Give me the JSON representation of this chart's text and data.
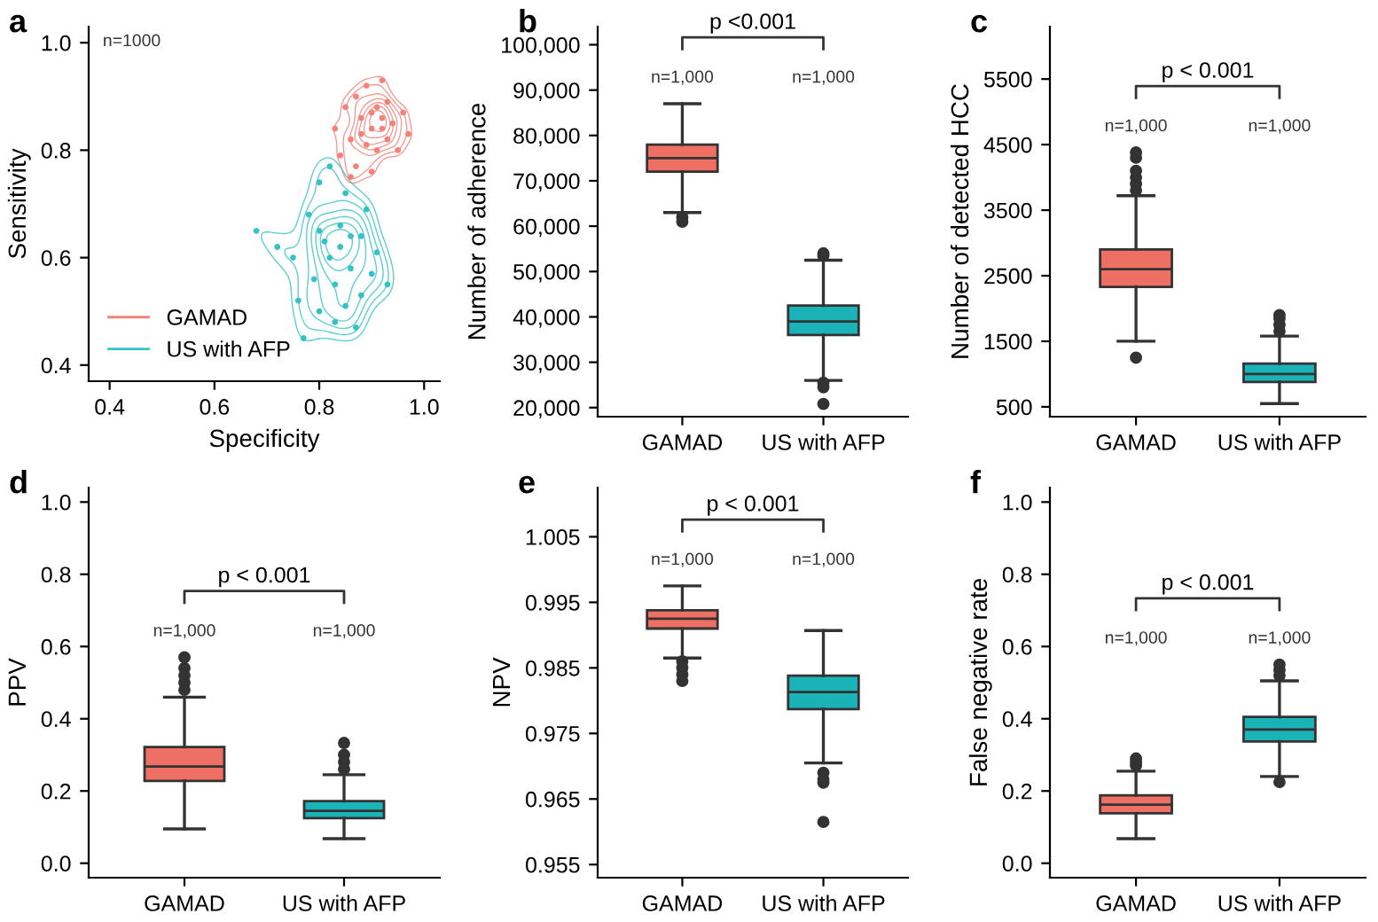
{
  "chart_data": [
    {
      "type": "scatter",
      "title": "a",
      "xlabel": "Specificity",
      "ylabel": "Sensitivity",
      "xlim": [
        0.36,
        1.03
      ],
      "ylim": [
        0.37,
        1.03
      ],
      "xticks": [
        {
          "value": 0.4,
          "label": "0.4"
        },
        {
          "value": 0.6,
          "label": "0.6"
        },
        {
          "value": 0.8,
          "label": "0.8"
        },
        {
          "value": 1.0,
          "label": "1.0"
        }
      ],
      "yticks": [
        {
          "value": 0.4,
          "label": "0.4"
        },
        {
          "value": 0.6,
          "label": "0.6"
        },
        {
          "value": 0.8,
          "label": "0.8"
        },
        {
          "value": 1.0,
          "label": "1.0"
        }
      ],
      "legend": "bottom left",
      "annotations": [
        "n=1000"
      ],
      "series": [
        {
          "name": "GAMAD",
          "color": "#f3837a",
          "x": [
            0.83,
            0.84,
            0.85,
            0.86,
            0.87,
            0.87,
            0.88,
            0.89,
            0.89,
            0.9,
            0.9,
            0.91,
            0.91,
            0.92,
            0.92,
            0.93,
            0.93,
            0.94,
            0.95,
            0.96,
            0.97,
            0.88,
            0.9,
            0.92,
            0.86
          ],
          "values": [
            0.84,
            0.79,
            0.88,
            0.82,
            0.9,
            0.77,
            0.86,
            0.81,
            0.92,
            0.84,
            0.76,
            0.88,
            0.8,
            0.86,
            0.93,
            0.82,
            0.89,
            0.85,
            0.8,
            0.87,
            0.83,
            0.83,
            0.87,
            0.84,
            0.75
          ]
        },
        {
          "name": "US with AFP",
          "color": "#35c2c6",
          "x": [
            0.68,
            0.72,
            0.75,
            0.76,
            0.77,
            0.78,
            0.79,
            0.8,
            0.8,
            0.81,
            0.82,
            0.83,
            0.83,
            0.84,
            0.85,
            0.85,
            0.86,
            0.87,
            0.88,
            0.88,
            0.89,
            0.9,
            0.91,
            0.93,
            0.82,
            0.84,
            0.8,
            0.86
          ],
          "values": [
            0.65,
            0.62,
            0.6,
            0.52,
            0.45,
            0.68,
            0.56,
            0.74,
            0.5,
            0.63,
            0.77,
            0.55,
            0.48,
            0.66,
            0.51,
            0.72,
            0.58,
            0.47,
            0.64,
            0.53,
            0.69,
            0.57,
            0.61,
            0.55,
            0.6,
            0.62,
            0.65,
            0.64
          ]
        }
      ]
    },
    {
      "type": "box",
      "title": "b",
      "ylabel": "Number of adherence",
      "categories": [
        "GAMAD",
        "US with AFP"
      ],
      "colors": [
        "#ee6f63",
        "#1ab3b8"
      ],
      "ylim": [
        18000,
        104000
      ],
      "yticks": [
        {
          "value": 20000,
          "label": "20,000"
        },
        {
          "value": 30000,
          "label": "30,000"
        },
        {
          "value": 40000,
          "label": "40,000"
        },
        {
          "value": 50000,
          "label": "50,000"
        },
        {
          "value": 60000,
          "label": "60,000"
        },
        {
          "value": 70000,
          "label": "70,000"
        },
        {
          "value": 80000,
          "label": "80,000"
        },
        {
          "value": 90000,
          "label": "90,000"
        },
        {
          "value": 100000,
          "label": "100,000"
        }
      ],
      "boxes": [
        {
          "low": 63000,
          "q1": 72000,
          "median": 75000,
          "q3": 78000,
          "high": 87000,
          "outliers": [
            61000,
            62000
          ]
        },
        {
          "low": 26000,
          "q1": 36000,
          "median": 39000,
          "q3": 42500,
          "high": 52500,
          "outliers": [
            20800,
            24500,
            25500,
            53500,
            54000
          ]
        }
      ],
      "annotations": [
        "p <0.001",
        "n=1,000",
        "n=1,000"
      ]
    },
    {
      "type": "box",
      "title": "c",
      "ylabel": "Number of detected HCC",
      "categories": [
        "GAMAD",
        "US with AFP"
      ],
      "colors": [
        "#ee6f63",
        "#1ab3b8"
      ],
      "ylim": [
        350,
        6300
      ],
      "yticks": [
        500,
        1500,
        2500,
        3500,
        4500,
        5500
      ],
      "boxes": [
        {
          "low": 1500,
          "q1": 2330,
          "median": 2600,
          "q3": 2900,
          "high": 3720,
          "outliers": [
            1250,
            3800,
            3900,
            4000,
            4100,
            4300,
            4380
          ]
        },
        {
          "low": 550,
          "q1": 880,
          "median": 1000,
          "q3": 1160,
          "high": 1580,
          "outliers": [
            1650,
            1750,
            1850,
            1900
          ]
        }
      ],
      "annotations": [
        "p < 0.001",
        "n=1,000",
        "n=1,000"
      ]
    },
    {
      "type": "box",
      "title": "d",
      "ylabel": "PPV",
      "categories": [
        "GAMAD",
        "US with AFP"
      ],
      "colors": [
        "#ee6f63",
        "#1ab3b8"
      ],
      "ylim": [
        -0.04,
        1.04
      ],
      "yticks": [
        {
          "value": 0.0,
          "label": "0.0"
        },
        0.2,
        0.4,
        0.6,
        0.8,
        {
          "value": 1.0,
          "label": "1.0"
        }
      ],
      "boxes": [
        {
          "low": 0.095,
          "q1": 0.228,
          "median": 0.268,
          "q3": 0.322,
          "high": 0.46,
          "outliers": [
            0.48,
            0.5,
            0.52,
            0.54,
            0.57
          ]
        },
        {
          "low": 0.068,
          "q1": 0.125,
          "median": 0.145,
          "q3": 0.172,
          "high": 0.245,
          "outliers": [
            0.26,
            0.28,
            0.3,
            0.333
          ]
        }
      ],
      "annotations": [
        "p < 0.001",
        "n=1,000",
        "n=1,000"
      ]
    },
    {
      "type": "box",
      "title": "e",
      "ylabel": "NPV",
      "categories": [
        "GAMAD",
        "US with AFP"
      ],
      "colors": [
        "#ee6f63",
        "#1ab3b8"
      ],
      "ylim": [
        0.953,
        1.0125
      ],
      "yticks": [
        0.955,
        0.965,
        0.975,
        0.985,
        0.995,
        1.005
      ],
      "boxes": [
        {
          "low": 0.9865,
          "q1": 0.991,
          "median": 0.9925,
          "q3": 0.9938,
          "high": 0.9975,
          "outliers": [
            0.983,
            0.984,
            0.985,
            0.986
          ]
        },
        {
          "low": 0.9705,
          "q1": 0.9787,
          "median": 0.9813,
          "q3": 0.9838,
          "high": 0.9907,
          "outliers": [
            0.9615,
            0.9675,
            0.968,
            0.969
          ]
        }
      ],
      "annotations": [
        "p < 0.001",
        "n=1,000",
        "n=1,000"
      ]
    },
    {
      "type": "box",
      "title": "f",
      "ylabel": "False negative rate",
      "categories": [
        "GAMAD",
        "US with AFP"
      ],
      "colors": [
        "#ee6f63",
        "#1ab3b8"
      ],
      "ylim": [
        -0.04,
        1.04
      ],
      "yticks": [
        {
          "value": 0.0,
          "label": "0.0"
        },
        0.2,
        0.4,
        0.6,
        0.8,
        {
          "value": 1.0,
          "label": "1.0"
        }
      ],
      "boxes": [
        {
          "low": 0.068,
          "q1": 0.138,
          "median": 0.162,
          "q3": 0.188,
          "high": 0.255,
          "outliers": [
            0.27,
            0.28,
            0.29
          ]
        },
        {
          "low": 0.24,
          "q1": 0.337,
          "median": 0.37,
          "q3": 0.405,
          "high": 0.505,
          "outliers": [
            0.225,
            0.52,
            0.535,
            0.55
          ]
        }
      ],
      "annotations": [
        "p < 0.001",
        "n=1,000",
        "n=1,000"
      ]
    }
  ]
}
